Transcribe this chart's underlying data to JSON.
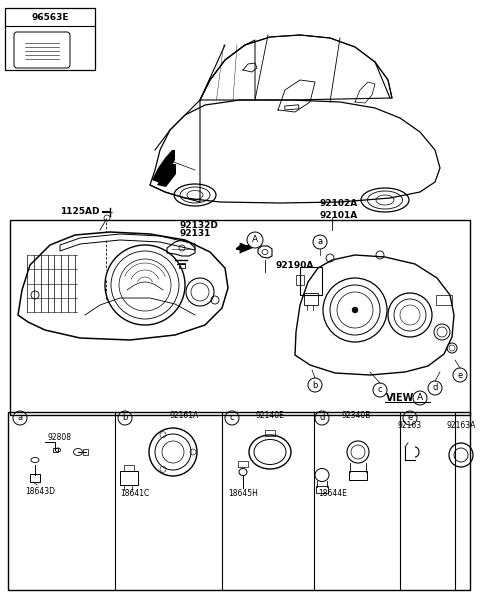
{
  "bg_color": "#ffffff",
  "labels": {
    "part_96563E": "96563E",
    "part_1125AD": "1125AD",
    "part_92102A": "92102A",
    "part_92101A": "92101A",
    "part_92132D": "92132D",
    "part_92131": "92131",
    "part_92190A": "92190A",
    "view_label": "VIEW",
    "box_a_parts": [
      "92808",
      "18643D"
    ],
    "box_b_parts": [
      "92161A",
      "18641C"
    ],
    "box_c_parts": [
      "92140E",
      "18645H"
    ],
    "box_d_parts": [
      "92340B",
      "18644E"
    ],
    "box_e_parts": [
      "92163",
      "92163A"
    ]
  },
  "fs": 6.5,
  "fs_small": 5.5,
  "fs_mid": 6.0
}
